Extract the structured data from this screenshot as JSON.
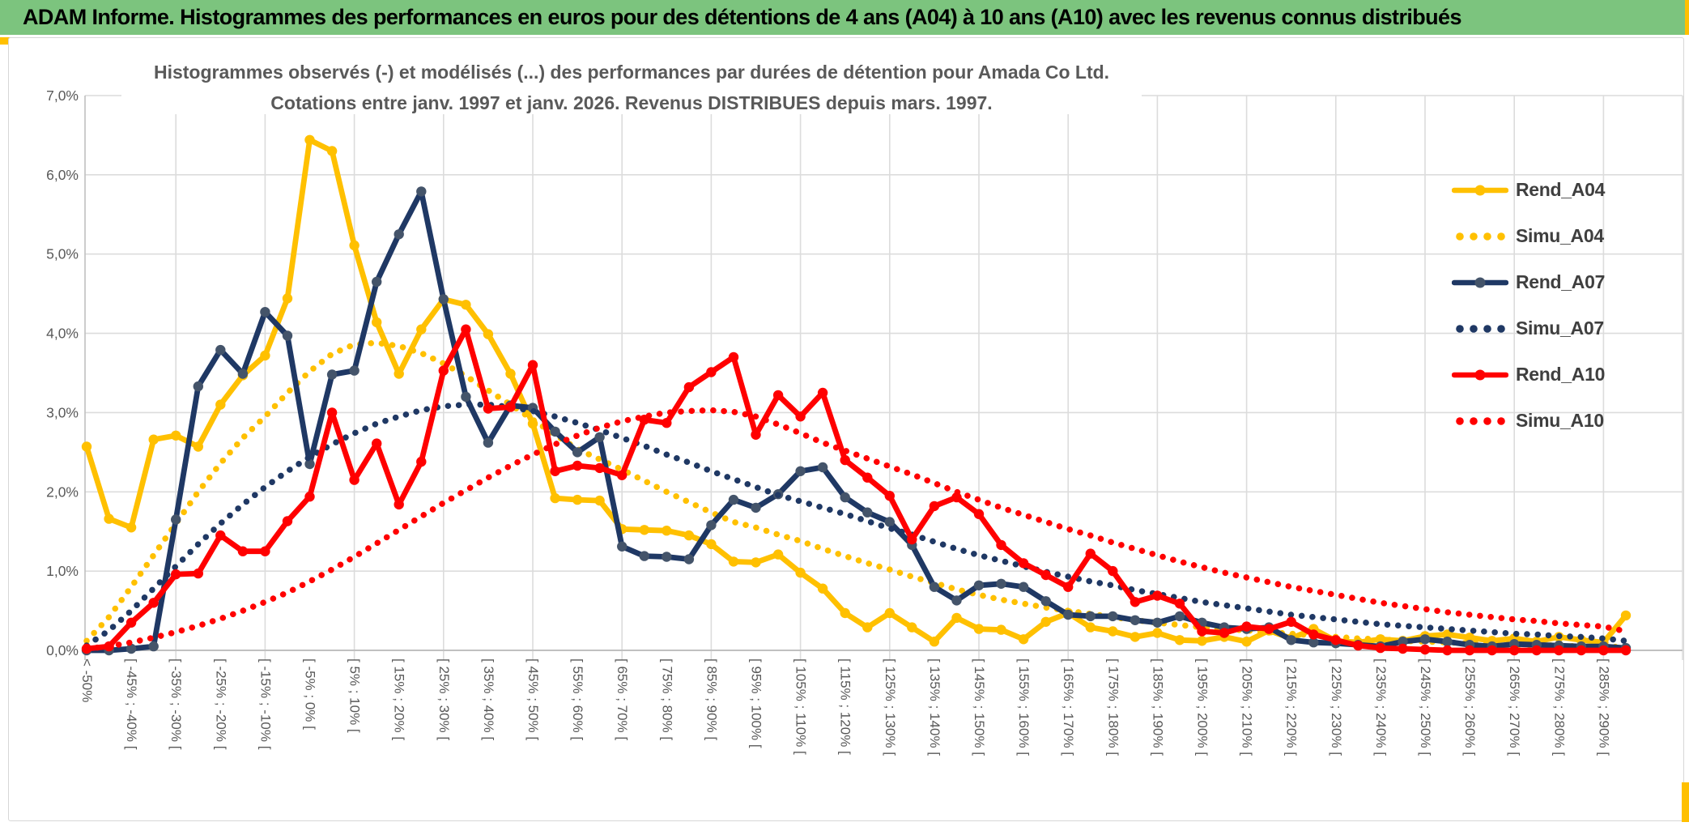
{
  "window": {
    "title": "ADAM Informe. Histogrammes des performances en euros pour des détentions de 4 ans (A04) à 10 ans (A10) avec les revenus connus distribués"
  },
  "colors": {
    "header_bg": "#7CC47E",
    "accent_yellow": "#FFC000",
    "grid": "#dcdcdc",
    "axis_line": "#c0c0c0",
    "axis_text": "#595959",
    "title_text": "#595959",
    "legend_text": "#3f3f3f",
    "gold": "#FFC000",
    "navy": "#1F3864",
    "navy_marker": "#44546A",
    "red": "#FF0000"
  },
  "chart_data": {
    "type": "line",
    "title_line1": "Histogrammes observés (-) et modélisés (...) des performances par durées de détention pour Amada Co Ltd.",
    "title_line2": "Cotations entre janv. 1997 et janv. 2026. Revenus DISTRIBUES depuis mars. 1997.",
    "ylim": [
      0,
      7
    ],
    "grid": true,
    "legend_position": "right",
    "ytick_labels": [
      "0,0%",
      "1,0%",
      "2,0%",
      "3,0%",
      "4,0%",
      "5,0%",
      "6,0%",
      "7,0%"
    ],
    "categories": [
      "< -50%",
      "",
      "[ -45% ; -40% [",
      "",
      "[ -35% ; -30% [",
      "",
      "[ -25% ; -20% [",
      "",
      "[ -15% ; -10% [",
      "",
      "[ -5% ; 0% [",
      "",
      "[ 5% ; 10% [",
      "",
      "[ 15% ; 20% [",
      "",
      "[ 25% ; 30% [",
      "",
      "[ 35% ; 40% [",
      "",
      "[ 45% ; 50% [",
      "",
      "[ 55% ; 60% [",
      "",
      "[ 65% ; 70% [",
      "",
      "[ 75% ; 80% [",
      "",
      "[ 85% ; 90% [",
      "",
      "[ 95% ; 100% [",
      "",
      "[ 105% ; 110% [",
      "",
      "[ 115% ; 120% [",
      "",
      "[ 125% ; 130% [",
      "",
      "[ 135% ; 140% [",
      "",
      "[ 145% ; 150% [",
      "",
      "[ 155% ; 160% [",
      "",
      "[ 165% ; 170% [",
      "",
      "[ 175% ; 180% [",
      "",
      "[ 185% ; 190% [",
      "",
      "[ 195% ; 200% [",
      "",
      "[ 205% ; 210% [",
      "",
      "[ 215% ; 220% [",
      "",
      "[ 225% ; 230% [",
      "",
      "[ 235% ; 240% [",
      "",
      "[ 245% ; 250% [",
      "",
      "[ 255% ; 260% [",
      "",
      "[ 265% ; 270% [",
      "",
      "[ 275% ; 280% [",
      "",
      "[ 285% ; 290% [",
      ""
    ],
    "series": [
      {
        "name": "Rend_A04",
        "style": "solid",
        "color": "#FFC000",
        "marker_color": "#FFC000",
        "values": [
          2.57,
          1.66,
          1.55,
          2.66,
          2.71,
          2.57,
          3.1,
          3.47,
          3.72,
          4.44,
          6.44,
          6.3,
          5.11,
          4.14,
          3.49,
          4.05,
          4.43,
          4.36,
          3.99,
          3.49,
          2.86,
          1.92,
          1.9,
          1.89,
          1.53,
          1.52,
          1.51,
          1.45,
          1.34,
          1.12,
          1.11,
          1.21,
          0.98,
          0.78,
          0.47,
          0.29,
          0.47,
          0.29,
          0.11,
          0.41,
          0.27,
          0.26,
          0.14,
          0.36,
          0.47,
          0.29,
          0.24,
          0.17,
          0.22,
          0.13,
          0.12,
          0.17,
          0.11,
          0.25,
          0.15,
          0.27,
          0.12,
          0.1,
          0.14,
          0.12,
          0.18,
          0.2,
          0.16,
          0.12,
          0.15,
          0.11,
          0.17,
          0.13,
          0.1,
          0.44
        ]
      },
      {
        "name": "Simu_A04",
        "style": "dotted",
        "color": "#FFC000",
        "values": [
          0.12,
          0.42,
          0.8,
          1.2,
          1.6,
          2.0,
          2.36,
          2.68,
          2.95,
          3.25,
          3.52,
          3.74,
          3.86,
          3.88,
          3.84,
          3.75,
          3.62,
          3.46,
          3.28,
          3.1,
          2.91,
          2.72,
          2.54,
          2.41,
          2.28,
          2.14,
          2.0,
          1.87,
          1.74,
          1.62,
          1.55,
          1.46,
          1.38,
          1.28,
          1.19,
          1.1,
          1.02,
          0.93,
          0.85,
          0.77,
          0.7,
          0.64,
          0.59,
          0.54,
          0.5,
          0.46,
          0.42,
          0.38,
          0.35,
          0.32,
          0.29,
          0.27,
          0.25,
          0.23,
          0.21,
          0.19,
          0.17,
          0.15,
          0.14,
          0.12,
          0.11,
          0.1,
          0.09,
          0.08,
          0.07,
          0.07,
          0.06,
          0.05,
          0.05,
          0.04
        ]
      },
      {
        "name": "Rend_A07",
        "style": "solid",
        "color": "#1F3864",
        "marker_color": "#44546A",
        "values": [
          0.0,
          0.0,
          0.02,
          0.05,
          1.65,
          3.33,
          3.79,
          3.49,
          4.27,
          3.97,
          2.35,
          3.48,
          3.53,
          4.65,
          5.25,
          5.79,
          4.43,
          3.2,
          2.62,
          3.09,
          3.06,
          2.76,
          2.5,
          2.69,
          1.31,
          1.19,
          1.18,
          1.15,
          1.58,
          1.9,
          1.8,
          1.97,
          2.26,
          2.31,
          1.93,
          1.74,
          1.62,
          1.33,
          0.8,
          0.63,
          0.82,
          0.84,
          0.8,
          0.62,
          0.45,
          0.43,
          0.43,
          0.38,
          0.35,
          0.43,
          0.35,
          0.29,
          0.27,
          0.29,
          0.13,
          0.1,
          0.09,
          0.07,
          0.05,
          0.11,
          0.14,
          0.11,
          0.07,
          0.05,
          0.08,
          0.07,
          0.06,
          0.05,
          0.05,
          0.03
        ]
      },
      {
        "name": "Simu_A07",
        "style": "dotted",
        "color": "#1F3864",
        "values": [
          0.06,
          0.25,
          0.5,
          0.78,
          1.06,
          1.34,
          1.6,
          1.84,
          2.06,
          2.26,
          2.44,
          2.6,
          2.74,
          2.86,
          2.95,
          3.03,
          3.08,
          3.1,
          3.1,
          3.07,
          3.02,
          2.95,
          2.87,
          2.78,
          2.68,
          2.58,
          2.47,
          2.37,
          2.26,
          2.16,
          2.06,
          1.96,
          1.88,
          1.8,
          1.72,
          1.63,
          1.54,
          1.46,
          1.37,
          1.28,
          1.2,
          1.13,
          1.06,
          0.99,
          0.93,
          0.87,
          0.82,
          0.76,
          0.71,
          0.66,
          0.61,
          0.57,
          0.53,
          0.49,
          0.45,
          0.42,
          0.39,
          0.36,
          0.33,
          0.31,
          0.29,
          0.27,
          0.25,
          0.23,
          0.21,
          0.2,
          0.18,
          0.17,
          0.15,
          0.12
        ]
      },
      {
        "name": "Rend_A10",
        "style": "solid",
        "color": "#FF0000",
        "marker_color": "#FF0000",
        "values": [
          0.02,
          0.05,
          0.35,
          0.6,
          0.96,
          0.97,
          1.45,
          1.25,
          1.25,
          1.63,
          1.94,
          3.0,
          2.15,
          2.61,
          1.84,
          2.38,
          3.53,
          4.05,
          3.05,
          3.07,
          3.6,
          2.26,
          2.33,
          2.3,
          2.21,
          2.91,
          2.87,
          3.32,
          3.51,
          3.7,
          2.72,
          3.22,
          2.95,
          3.25,
          2.4,
          2.18,
          1.95,
          1.4,
          1.82,
          1.93,
          1.72,
          1.33,
          1.1,
          0.95,
          0.8,
          1.22,
          1.0,
          0.61,
          0.69,
          0.59,
          0.24,
          0.22,
          0.3,
          0.27,
          0.36,
          0.2,
          0.13,
          0.06,
          0.03,
          0.02,
          0.01,
          0.0,
          0.0,
          0.0,
          0.0,
          0.0,
          0.0,
          0.0,
          0.0,
          0.0
        ]
      },
      {
        "name": "Simu_A10",
        "style": "dotted",
        "color": "#FF0000",
        "values": [
          0.02,
          0.05,
          0.1,
          0.16,
          0.23,
          0.31,
          0.4,
          0.5,
          0.61,
          0.73,
          0.87,
          1.02,
          1.18,
          1.35,
          1.52,
          1.69,
          1.86,
          2.02,
          2.18,
          2.33,
          2.47,
          2.6,
          2.71,
          2.81,
          2.89,
          2.95,
          3.0,
          3.02,
          3.03,
          3.01,
          2.95,
          2.85,
          2.74,
          2.62,
          2.52,
          2.42,
          2.32,
          2.22,
          2.11,
          2.0,
          1.9,
          1.8,
          1.71,
          1.62,
          1.53,
          1.45,
          1.36,
          1.28,
          1.2,
          1.12,
          1.05,
          0.98,
          0.92,
          0.86,
          0.8,
          0.75,
          0.7,
          0.65,
          0.6,
          0.56,
          0.52,
          0.48,
          0.45,
          0.42,
          0.39,
          0.37,
          0.34,
          0.32,
          0.3,
          0.24
        ]
      }
    ]
  }
}
